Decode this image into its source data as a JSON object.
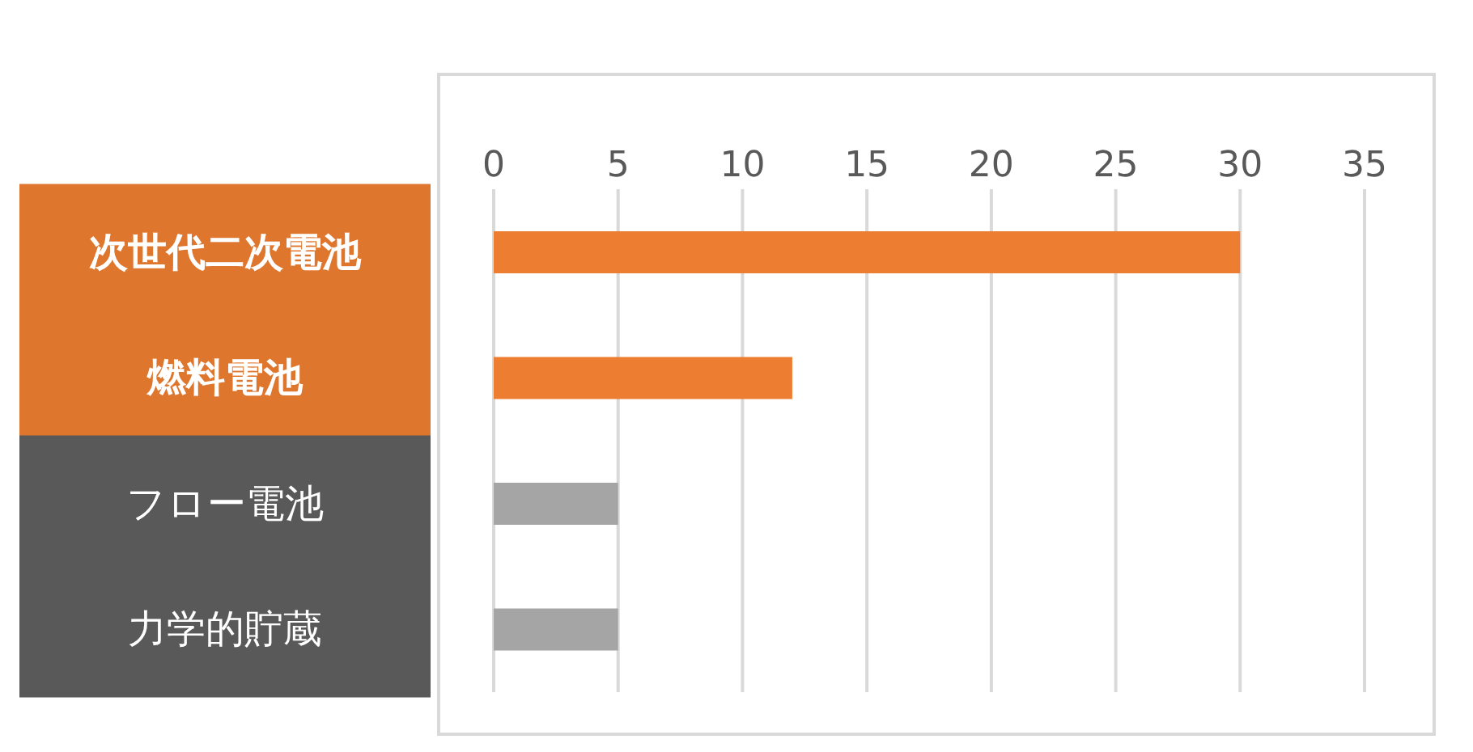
{
  "chart_data": {
    "type": "bar",
    "orientation": "horizontal",
    "categories": [
      "次世代二次電池",
      "燃料電池",
      "フロー電池",
      "力学的貯蔵"
    ],
    "values": [
      30,
      12,
      5,
      5
    ],
    "colors": [
      "#ed7d31",
      "#ed7d31",
      "#a5a5a5",
      "#a5a5a5"
    ],
    "xlim": [
      0,
      35
    ],
    "xticks": [
      0,
      5,
      10,
      15,
      20,
      25,
      30,
      35
    ],
    "grid": "x"
  }
}
